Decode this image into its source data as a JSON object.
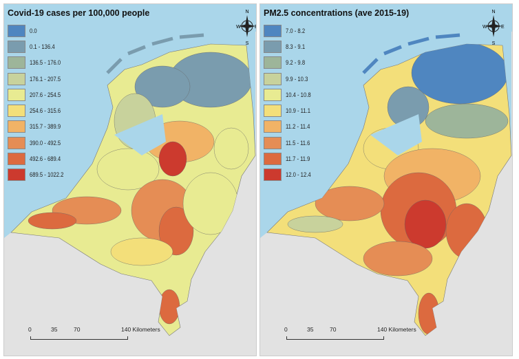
{
  "panels": [
    {
      "title": "Covid-19 cases per 100,000 people",
      "legend": [
        {
          "label": "0.0",
          "color": "#4f86c0"
        },
        {
          "label": "0.1 - 136.4",
          "color": "#7a9cae"
        },
        {
          "label": "136.5 - 176.0",
          "color": "#9db59a"
        },
        {
          "label": "176.1 - 207.5",
          "color": "#c8d29c"
        },
        {
          "label": "207.6 - 254.5",
          "color": "#e8eb92"
        },
        {
          "label": "254.6 - 315.6",
          "color": "#f3df7a"
        },
        {
          "label": "315.7 - 389.9",
          "color": "#f1b366"
        },
        {
          "label": "390.0 - 492.5",
          "color": "#e58d55"
        },
        {
          "label": "492.6 - 689.4",
          "color": "#dc6a3f"
        },
        {
          "label": "689.5 - 1022.2",
          "color": "#cc3a2e"
        }
      ]
    },
    {
      "title": "PM2.5 concentrations (ave 2015-19)",
      "legend": [
        {
          "label": "7.0 - 8.2",
          "color": "#4f86c0"
        },
        {
          "label": "8.3 - 9.1",
          "color": "#7a9cae"
        },
        {
          "label": "9.2 - 9.8",
          "color": "#9db59a"
        },
        {
          "label": "9.9 - 10.3",
          "color": "#c8d29c"
        },
        {
          "label": "10.4 - 10.8",
          "color": "#e8eb92"
        },
        {
          "label": "10.9 - 11.1",
          "color": "#f3df7a"
        },
        {
          "label": "11.2 - 11.4",
          "color": "#f1b366"
        },
        {
          "label": "11.5 - 11.6",
          "color": "#e58d55"
        },
        {
          "label": "11.7 - 11.9",
          "color": "#dc6a3f"
        },
        {
          "label": "12.0 - 12.4",
          "color": "#cc3a2e"
        }
      ]
    }
  ],
  "compass": {
    "n": "N",
    "s": "S",
    "e": "E",
    "w": "W"
  },
  "scale": {
    "t0": "0",
    "t1": "35",
    "t2": "70",
    "t3": "140 Kilometers"
  }
}
